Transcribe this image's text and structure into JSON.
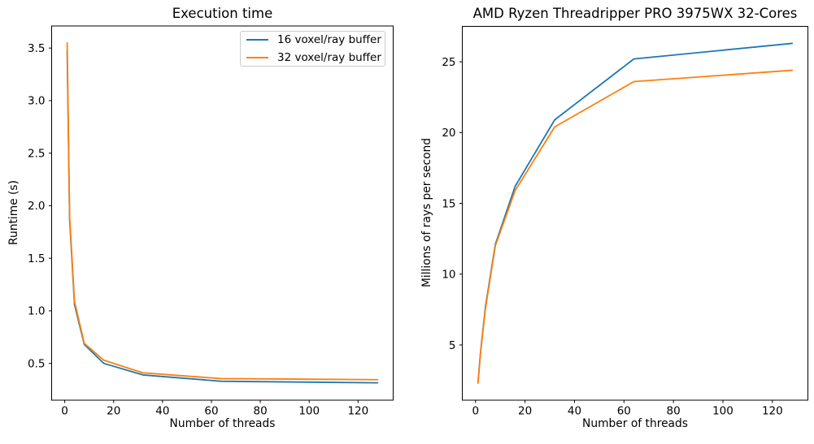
{
  "colors": {
    "background": "#ffffff",
    "axes_edge": "#000000",
    "text": "#000000",
    "series_blue": "#1f77b4",
    "series_orange": "#ff7f0e",
    "legend_border": "#cccccc"
  },
  "legend": {
    "entries": [
      "16 voxel/ray buffer",
      "32 voxel/ray buffer"
    ],
    "position": "upper right of left chart"
  },
  "chart_data": [
    {
      "id": "execution-time",
      "type": "line",
      "title": "Execution time",
      "xlabel": "Number of threads",
      "ylabel": "Runtime (s)",
      "x": [
        1,
        2,
        4,
        8,
        16,
        32,
        64,
        128
      ],
      "series": [
        {
          "name": "16 voxel/ray buffer",
          "color": "#1f77b4",
          "values": [
            3.47,
            1.87,
            1.06,
            0.68,
            0.5,
            0.39,
            0.33,
            0.315
          ]
        },
        {
          "name": "32 voxel/ray buffer",
          "color": "#ff7f0e",
          "values": [
            3.55,
            1.9,
            1.09,
            0.69,
            0.53,
            0.41,
            0.355,
            0.345
          ]
        }
      ],
      "xlim": [
        -5.35,
        134.35
      ],
      "ylim": [
        0.15,
        3.71
      ],
      "xticks": [
        0,
        20,
        40,
        60,
        80,
        100,
        120
      ],
      "yticks": [
        0.5,
        1.0,
        1.5,
        2.0,
        2.5,
        3.0,
        3.5
      ],
      "ytick_labels": [
        "0.5",
        "1.0",
        "1.5",
        "2.0",
        "2.5",
        "3.0",
        "3.5"
      ],
      "grid": false,
      "legend_visible": true
    },
    {
      "id": "rays-per-second",
      "type": "line",
      "title": "AMD Ryzen Threadripper PRO 3975WX 32-Cores",
      "xlabel": "Number of threads",
      "ylabel": "Millions of rays per second",
      "x": [
        1,
        2,
        4,
        8,
        16,
        32,
        64,
        128
      ],
      "series": [
        {
          "name": "16 voxel/ray buffer",
          "color": "#1f77b4",
          "values": [
            2.35,
            4.45,
            7.7,
            12.1,
            16.2,
            20.9,
            25.2,
            26.3
          ]
        },
        {
          "name": "32 voxel/ray buffer",
          "color": "#ff7f0e",
          "values": [
            2.3,
            4.4,
            7.55,
            12.0,
            15.9,
            20.4,
            23.6,
            24.4
          ]
        }
      ],
      "xlim": [
        -5.35,
        134.35
      ],
      "ylim": [
        1.1,
        27.5
      ],
      "xticks": [
        0,
        20,
        40,
        60,
        80,
        100,
        120
      ],
      "yticks": [
        5,
        10,
        15,
        20,
        25
      ],
      "ytick_labels": [
        "5",
        "10",
        "15",
        "20",
        "25"
      ],
      "grid": false,
      "legend_visible": false
    }
  ]
}
